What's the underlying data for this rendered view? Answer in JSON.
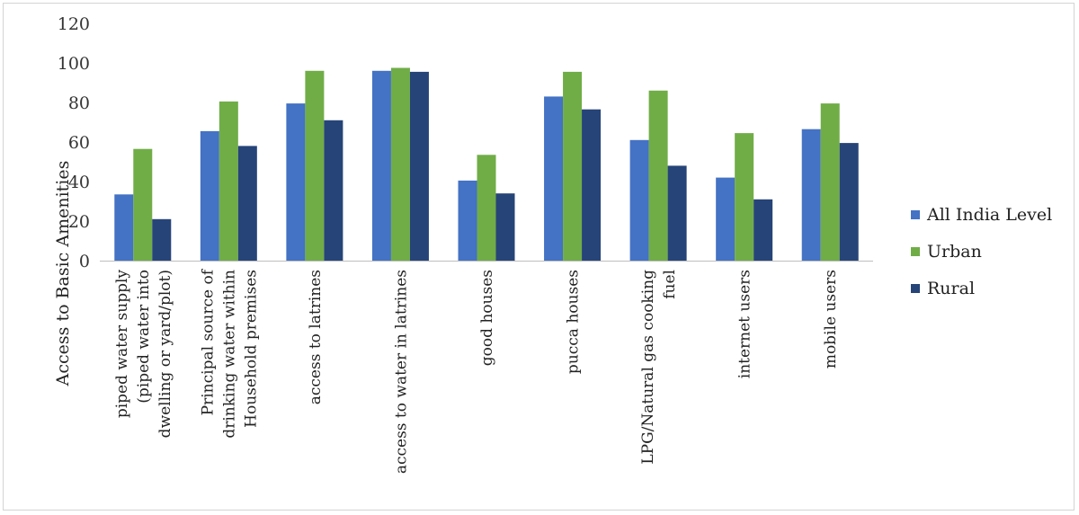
{
  "chart_data": {
    "type": "bar",
    "ylabel": "Access to Basic Amenities",
    "ylim": [
      0,
      120
    ],
    "yticks": [
      0,
      20,
      40,
      60,
      80,
      100,
      120
    ],
    "grid": false,
    "legend_position": "right",
    "categories": [
      [
        "piped water supply",
        "(piped water into",
        "dwelling or yard/plot)"
      ],
      [
        "Principal source of",
        "drinking water within",
        "Household premises"
      ],
      [
        "access to latrines"
      ],
      [
        "access to water in latrines"
      ],
      [
        "good houses"
      ],
      [
        "pucca houses"
      ],
      [
        "LPG/Natural gas cooking",
        "fuel"
      ],
      [
        "internet users"
      ],
      [
        "mobile users"
      ]
    ],
    "series": [
      {
        "name": "All India Level",
        "color": "#4472c4",
        "values": [
          33.5,
          65.5,
          79.5,
          96,
          40.5,
          83,
          61,
          42,
          66.5
        ]
      },
      {
        "name": "Urban",
        "color": "#70ad47",
        "values": [
          56.5,
          80.5,
          96,
          97.5,
          53.5,
          95.5,
          86,
          64.5,
          79.5
        ]
      },
      {
        "name": "Rural",
        "color": "#264478",
        "values": [
          21,
          58,
          71,
          95.5,
          34,
          76.5,
          48,
          31,
          59.5
        ]
      }
    ]
  }
}
